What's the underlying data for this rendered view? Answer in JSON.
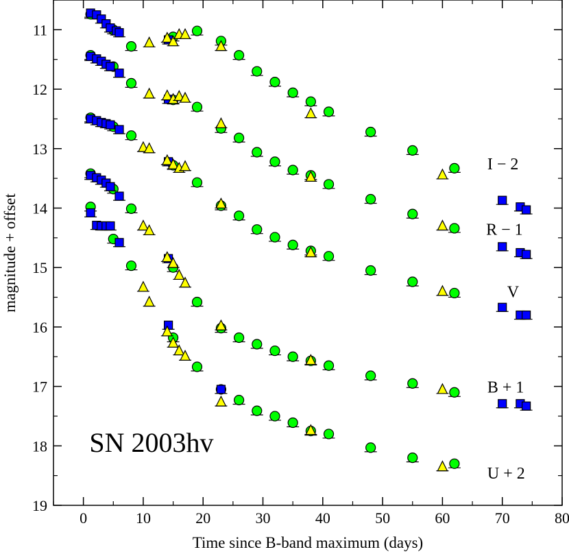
{
  "chart_data": {
    "type": "scatter",
    "title": "",
    "xlabel": "Time since B-band maximum (days)",
    "ylabel": "magnitude + offset",
    "xlim": [
      -5,
      80
    ],
    "ylim": [
      19,
      10.5
    ],
    "y_inverted": true,
    "x_ticks": [
      0,
      10,
      20,
      30,
      40,
      50,
      60,
      70,
      80
    ],
    "y_ticks": [
      11,
      12,
      13,
      14,
      15,
      16,
      17,
      18,
      19
    ],
    "grid": false,
    "legend": "none",
    "marker_colors": {
      "square": "#0000ff",
      "triangle": "#ffff00",
      "circle": "#00ff00"
    },
    "annotations": [
      {
        "text": "SN 2003hv",
        "x": 1,
        "y": 18.1,
        "style": "large"
      },
      {
        "text": "I − 2",
        "x": 67.5,
        "y": 13.35
      },
      {
        "text": "R  − 1",
        "x": 67.3,
        "y": 14.45
      },
      {
        "text": "V",
        "x": 70.8,
        "y": 15.5
      },
      {
        "text": "B + 1",
        "x": 67.5,
        "y": 17.1
      },
      {
        "text": "U + 2",
        "x": 67.5,
        "y": 18.55
      }
    ],
    "series": [
      {
        "name": "I − 2 (squares)",
        "marker": "square",
        "color": "#0000ff",
        "points": [
          [
            1.2,
            10.72
          ],
          [
            2.2,
            10.75
          ],
          [
            3,
            10.82
          ],
          [
            3.8,
            10.9
          ],
          [
            4.5,
            10.97
          ],
          [
            5.5,
            11.02
          ],
          [
            6,
            11.05
          ],
          [
            14.2,
            11.17
          ],
          [
            70,
            13.87
          ],
          [
            73,
            13.98
          ],
          [
            74,
            14.03
          ]
        ]
      },
      {
        "name": "I − 2 (triangles)",
        "marker": "triangle",
        "color": "#ffff00",
        "points": [
          [
            11,
            11.22
          ],
          [
            14,
            11.14
          ],
          [
            15,
            11.2
          ],
          [
            16,
            11.08
          ],
          [
            17,
            11.08
          ],
          [
            23,
            11.28
          ],
          [
            38,
            12.41
          ],
          [
            60,
            13.44
          ]
        ]
      },
      {
        "name": "I − 2 (circles)",
        "marker": "circle",
        "color": "#00ff00",
        "points": [
          [
            1.2,
            10.74
          ],
          [
            5,
            11.0
          ],
          [
            8,
            11.28
          ],
          [
            15,
            11.12
          ],
          [
            19,
            11.02
          ],
          [
            23,
            11.19
          ],
          [
            26,
            11.43
          ],
          [
            29,
            11.7
          ],
          [
            32,
            11.88
          ],
          [
            35,
            12.06
          ],
          [
            38,
            12.21
          ],
          [
            41,
            12.38
          ],
          [
            48,
            12.72
          ],
          [
            55,
            13.03
          ],
          [
            62,
            13.33
          ]
        ]
      },
      {
        "name": "R − 1 (squares)",
        "marker": "square",
        "color": "#0000ff",
        "points": [
          [
            1.2,
            11.45
          ],
          [
            2.2,
            11.49
          ],
          [
            3,
            11.53
          ],
          [
            3.8,
            11.58
          ],
          [
            4.5,
            11.62
          ],
          [
            6,
            11.73
          ],
          [
            14.2,
            12.17
          ],
          [
            70,
            14.65
          ],
          [
            73,
            14.75
          ],
          [
            74,
            14.78
          ]
        ]
      },
      {
        "name": "R − 1 (triangles)",
        "marker": "triangle",
        "color": "#ffff00",
        "points": [
          [
            11,
            12.08
          ],
          [
            14,
            12.11
          ],
          [
            15,
            12.17
          ],
          [
            16,
            12.12
          ],
          [
            17,
            12.15
          ],
          [
            23,
            12.58
          ],
          [
            38,
            13.48
          ],
          [
            60,
            14.3
          ]
        ]
      },
      {
        "name": "R − 1 (circles)",
        "marker": "circle",
        "color": "#00ff00",
        "points": [
          [
            1.2,
            11.43
          ],
          [
            5,
            11.62
          ],
          [
            8,
            11.9
          ],
          [
            15,
            12.18
          ],
          [
            19,
            12.3
          ],
          [
            23,
            12.66
          ],
          [
            26,
            12.82
          ],
          [
            29,
            13.06
          ],
          [
            32,
            13.22
          ],
          [
            35,
            13.36
          ],
          [
            38,
            13.45
          ],
          [
            41,
            13.6
          ],
          [
            48,
            13.85
          ],
          [
            55,
            14.1
          ],
          [
            62,
            14.34
          ]
        ]
      },
      {
        "name": "V (squares)",
        "marker": "square",
        "color": "#0000ff",
        "points": [
          [
            1.2,
            12.5
          ],
          [
            2.2,
            12.53
          ],
          [
            3,
            12.56
          ],
          [
            3.8,
            12.58
          ],
          [
            4.5,
            12.6
          ],
          [
            6,
            12.68
          ],
          [
            14.2,
            13.22
          ],
          [
            70,
            15.67
          ],
          [
            73,
            15.8
          ],
          [
            74,
            15.8
          ]
        ]
      },
      {
        "name": "V (triangles)",
        "marker": "triangle",
        "color": "#ffff00",
        "points": [
          [
            10,
            12.98
          ],
          [
            11,
            13.0
          ],
          [
            14,
            13.2
          ],
          [
            15,
            13.27
          ],
          [
            16,
            13.33
          ],
          [
            17,
            13.3
          ],
          [
            23,
            13.93
          ],
          [
            38,
            14.75
          ],
          [
            60,
            15.4
          ]
        ]
      },
      {
        "name": "V (circles)",
        "marker": "circle",
        "color": "#00ff00",
        "points": [
          [
            1.2,
            12.48
          ],
          [
            5,
            12.63
          ],
          [
            8,
            12.78
          ],
          [
            15,
            13.28
          ],
          [
            19,
            13.57
          ],
          [
            23,
            13.96
          ],
          [
            26,
            14.13
          ],
          [
            29,
            14.36
          ],
          [
            32,
            14.49
          ],
          [
            35,
            14.62
          ],
          [
            38,
            14.72
          ],
          [
            41,
            14.81
          ],
          [
            48,
            15.05
          ],
          [
            55,
            15.24
          ],
          [
            62,
            15.43
          ]
        ]
      },
      {
        "name": "B + 1 (squares)",
        "marker": "square",
        "color": "#0000ff",
        "points": [
          [
            1.2,
            13.45
          ],
          [
            2.2,
            13.49
          ],
          [
            3,
            13.53
          ],
          [
            3.8,
            13.58
          ],
          [
            4.5,
            13.64
          ],
          [
            6,
            13.8
          ],
          [
            14.2,
            14.85
          ],
          [
            70,
            17.29
          ],
          [
            73,
            17.29
          ],
          [
            74,
            17.33
          ]
        ]
      },
      {
        "name": "B + 1 (triangles)",
        "marker": "triangle",
        "color": "#ffff00",
        "points": [
          [
            10,
            14.3
          ],
          [
            11,
            14.38
          ],
          [
            14,
            14.83
          ],
          [
            15,
            14.93
          ],
          [
            16,
            15.13
          ],
          [
            17,
            15.26
          ],
          [
            23,
            15.98
          ],
          [
            38,
            16.56
          ],
          [
            60,
            17.05
          ]
        ]
      },
      {
        "name": "B + 1 (circles)",
        "marker": "circle",
        "color": "#00ff00",
        "points": [
          [
            1.2,
            13.42
          ],
          [
            5,
            13.68
          ],
          [
            8,
            14.01
          ],
          [
            15,
            15.0
          ],
          [
            19,
            15.58
          ],
          [
            23,
            16.02
          ],
          [
            26,
            16.18
          ],
          [
            29,
            16.29
          ],
          [
            32,
            16.4
          ],
          [
            35,
            16.5
          ],
          [
            38,
            16.57
          ],
          [
            41,
            16.65
          ],
          [
            48,
            16.82
          ],
          [
            55,
            16.95
          ],
          [
            62,
            17.1
          ]
        ]
      },
      {
        "name": "U + 2 (squares)",
        "marker": "square",
        "color": "#0000ff",
        "points": [
          [
            1.2,
            14.08
          ],
          [
            2.2,
            14.29
          ],
          [
            3,
            14.3
          ],
          [
            3.8,
            14.3
          ],
          [
            4.5,
            14.3
          ],
          [
            6,
            14.58
          ],
          [
            14.2,
            15.97
          ],
          [
            23,
            17.05
          ]
        ]
      },
      {
        "name": "U + 2 (triangles)",
        "marker": "triangle",
        "color": "#ffff00",
        "points": [
          [
            10,
            15.33
          ],
          [
            11,
            15.58
          ],
          [
            14,
            16.08
          ],
          [
            15,
            16.27
          ],
          [
            16,
            16.4
          ],
          [
            17,
            16.49
          ],
          [
            23,
            17.26
          ],
          [
            38,
            17.74
          ],
          [
            60,
            18.35
          ]
        ]
      },
      {
        "name": "U + 2 (circles)",
        "marker": "circle",
        "color": "#00ff00",
        "points": [
          [
            1.2,
            13.98
          ],
          [
            5,
            14.52
          ],
          [
            8,
            14.97
          ],
          [
            15,
            16.18
          ],
          [
            19,
            16.67
          ],
          [
            23,
            17.05
          ],
          [
            26,
            17.23
          ],
          [
            29,
            17.41
          ],
          [
            32,
            17.5
          ],
          [
            35,
            17.61
          ],
          [
            38,
            17.75
          ],
          [
            41,
            17.8
          ],
          [
            48,
            18.03
          ],
          [
            55,
            18.2
          ],
          [
            62,
            18.3
          ]
        ]
      }
    ]
  }
}
